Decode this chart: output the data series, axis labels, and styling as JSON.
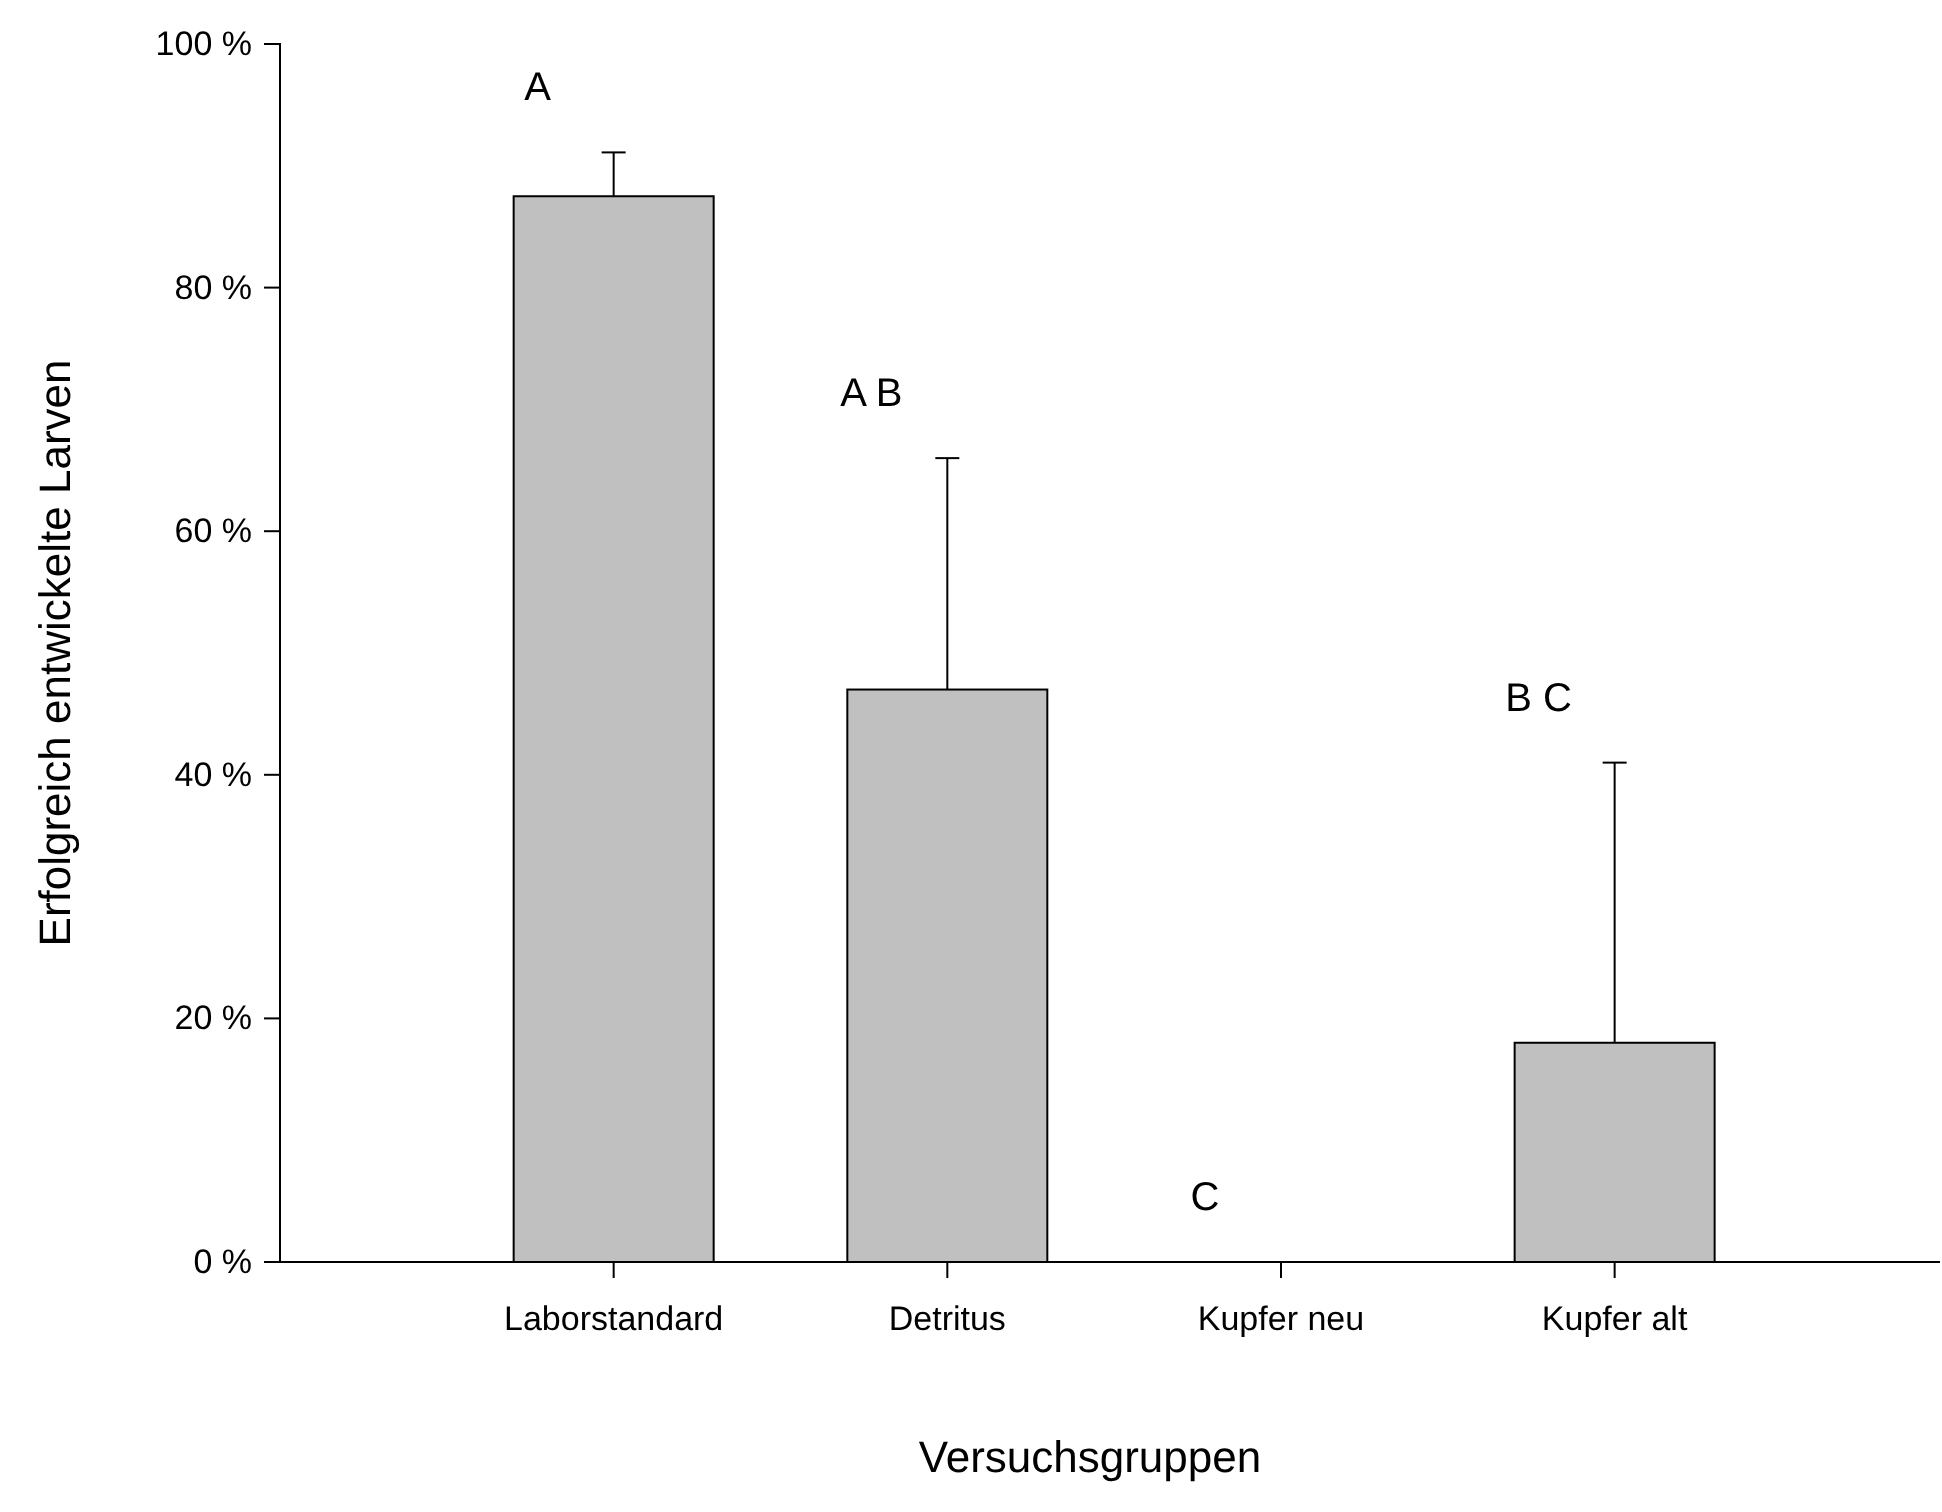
{
  "chart_data": {
    "type": "bar",
    "xlabel": "Versuchsgruppen",
    "ylabel": "Erfolgreich entwickelte Larven",
    "categories": [
      "Laborstandard",
      "Detritus",
      "Kupfer neu",
      "Kupfer alt"
    ],
    "values": [
      87.5,
      47,
      0,
      18
    ],
    "errors": [
      [
        87.5,
        91.1
      ],
      [
        47,
        66
      ],
      null,
      [
        18,
        41
      ]
    ],
    "color": "#c0c0c0",
    "ylim": [
      0,
      100
    ],
    "yticks": [
      {
        "value": 0,
        "label": "0 %"
      },
      {
        "value": 20,
        "label": "20 %"
      },
      {
        "value": 40,
        "label": "40 %"
      },
      {
        "value": 60,
        "label": "60 %"
      },
      {
        "value": 80,
        "label": "80 %"
      },
      {
        "value": 100,
        "label": "100 %"
      }
    ],
    "grid": false,
    "annotations": [
      "A",
      "A B",
      "C",
      "B C"
    ]
  }
}
